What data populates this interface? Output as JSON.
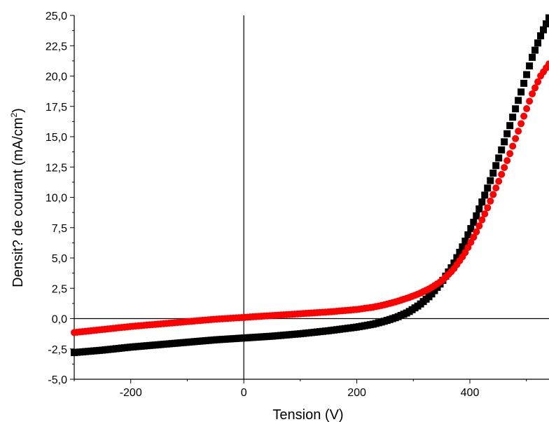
{
  "chart_data": {
    "type": "scatter",
    "xlabel": "Tension (V)",
    "ylabel": {
      "main": "Densit? de courant (mA/cm",
      "sup": "2",
      "end": ")"
    },
    "xlim": [
      -300,
      540
    ],
    "ylim": [
      -5,
      25
    ],
    "x_ticks": [
      -200,
      0,
      200,
      400
    ],
    "x_tick_labels": [
      "-200",
      "0",
      "200",
      "400"
    ],
    "y_ticks": [
      -5,
      -2.5,
      0,
      2.5,
      5,
      7.5,
      10,
      12.5,
      15,
      17.5,
      20,
      22.5,
      25
    ],
    "y_tick_labels": [
      "-5,0",
      "-2,5",
      "0,0",
      "2,5",
      "5,0",
      "7,5",
      "10,0",
      "12,5",
      "15,0",
      "17,5",
      "20,0",
      "22,5",
      "25,0"
    ],
    "zero_lines": {
      "x": 0,
      "y": 0
    },
    "legend": "none",
    "series": [
      {
        "color": "#000000",
        "marker": "square",
        "x": [
          -300,
          -250,
          -200,
          -150,
          -100,
          -50,
          0,
          50,
          100,
          150,
          200,
          230,
          250,
          270,
          290,
          310,
          330,
          350,
          370,
          390,
          410,
          430,
          450,
          470,
          490,
          510,
          525,
          540
        ],
        "y": [
          -2.8,
          -2.6,
          -2.35,
          -2.15,
          -1.95,
          -1.75,
          -1.6,
          -1.45,
          -1.25,
          -1.0,
          -0.7,
          -0.45,
          -0.2,
          0.1,
          0.5,
          1.1,
          1.9,
          3.0,
          4.4,
          6.2,
          8.3,
          10.6,
          13.1,
          15.8,
          18.6,
          21.5,
          23.3,
          24.8
        ]
      },
      {
        "color": "#ff0000",
        "marker": "circle",
        "x": [
          -300,
          -250,
          -200,
          -150,
          -100,
          -50,
          0,
          50,
          100,
          150,
          200,
          230,
          250,
          270,
          290,
          310,
          330,
          350,
          370,
          390,
          410,
          430,
          450,
          470,
          490,
          510,
          525,
          540
        ],
        "y": [
          -1.15,
          -0.9,
          -0.65,
          -0.45,
          -0.25,
          -0.05,
          0.1,
          0.25,
          0.4,
          0.55,
          0.75,
          0.95,
          1.15,
          1.4,
          1.7,
          2.05,
          2.5,
          3.1,
          4.0,
          5.3,
          7.0,
          9.0,
          11.2,
          13.5,
          16.0,
          18.5,
          20.0,
          21.0
        ]
      }
    ]
  }
}
